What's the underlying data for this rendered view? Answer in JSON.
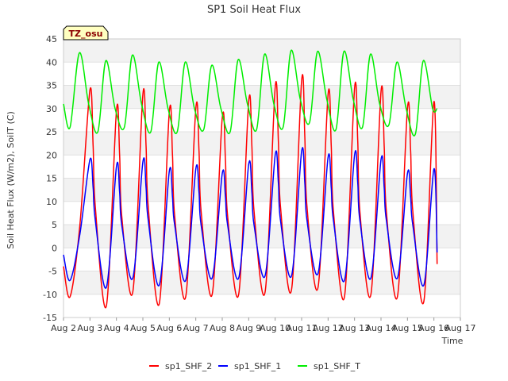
{
  "chart_data": {
    "type": "line",
    "title": "SP1 Soil Heat Flux",
    "xlabel": "Time",
    "ylabel": "Soil Heat Flux (W/m2), SoilT (C)",
    "badge": "TZ_osu",
    "ylim": [
      -15,
      45
    ],
    "xlim": [
      2,
      17
    ],
    "yticks": [
      "-15",
      "-10",
      "-5",
      "0",
      "5",
      "10",
      "15",
      "20",
      "25",
      "30",
      "35",
      "40",
      "45"
    ],
    "xticks": [
      "Aug 2",
      "Aug 3",
      "Aug 4",
      "Aug 5",
      "Aug 6",
      "Aug 7",
      "Aug 8",
      "Aug 9",
      "Aug 10",
      "Aug 11",
      "Aug 12",
      "Aug 13",
      "Aug 14",
      "Aug 15",
      "Aug 16",
      "Aug 17"
    ],
    "grid": true,
    "legend_position": "bottom",
    "series": [
      {
        "name": "sp1_SHF_2",
        "color": "#ff0000",
        "x": [
          2.0,
          2.25,
          2.62,
          3.0,
          3.12,
          3.2,
          3.62,
          4.0,
          4.12,
          4.2,
          4.62,
          5.0,
          5.12,
          5.2,
          5.62,
          6.0,
          6.12,
          6.2,
          6.62,
          7.0,
          7.12,
          7.2,
          7.62,
          8.0,
          8.12,
          8.2,
          8.62,
          9.0,
          9.12,
          9.2,
          9.62,
          10.0,
          10.12,
          10.2,
          10.62,
          11.0,
          11.12,
          11.2,
          11.62,
          12.0,
          12.12,
          12.2,
          12.62,
          13.0,
          13.12,
          13.2,
          13.62,
          14.0,
          14.12,
          14.2,
          14.62,
          15.0,
          15.12,
          15.2,
          15.62,
          16.0,
          16.12
        ],
        "y": [
          -4.0,
          -10.5,
          5,
          34,
          22,
          9,
          -12.5,
          29.5,
          20,
          7,
          -9.5,
          33,
          22,
          9,
          -12,
          29.3,
          20,
          7,
          -10.5,
          30,
          21,
          8,
          -10,
          28,
          19,
          7,
          -10,
          31.5,
          22,
          8,
          -9.5,
          34.5,
          23,
          9,
          -9,
          36,
          24,
          9,
          -8.5,
          33,
          22,
          8,
          -10.5,
          34.3,
          23,
          8,
          -10,
          33.6,
          22,
          8,
          -10.5,
          30,
          21,
          8,
          -11.5,
          31.5,
          -3.5
        ]
      },
      {
        "name": "sp1_SHF_1",
        "color": "#0000ff",
        "x": [
          2.0,
          2.25,
          2.62,
          3.0,
          3.12,
          3.2,
          3.62,
          4.0,
          4.12,
          4.2,
          4.62,
          5.0,
          5.12,
          5.2,
          5.62,
          6.0,
          6.12,
          6.2,
          6.62,
          7.0,
          7.12,
          7.2,
          7.62,
          8.0,
          8.12,
          8.2,
          8.62,
          9.0,
          9.12,
          9.2,
          9.62,
          10.0,
          10.12,
          10.2,
          10.62,
          11.0,
          11.12,
          11.2,
          11.62,
          12.0,
          12.12,
          12.2,
          12.62,
          13.0,
          13.12,
          13.2,
          13.62,
          14.0,
          14.12,
          14.2,
          14.62,
          15.0,
          15.12,
          15.2,
          15.62,
          16.0,
          16.12
        ],
        "y": [
          -1.5,
          -7,
          3,
          19,
          13,
          6,
          -8.5,
          17.5,
          12,
          5,
          -6.5,
          18.5,
          13,
          6,
          -8,
          16.5,
          11,
          5,
          -7,
          17,
          12,
          5,
          -6.5,
          16,
          11,
          5,
          -6.5,
          18,
          12,
          5,
          -6,
          20,
          14,
          6,
          -6,
          20.8,
          14,
          6,
          -5.5,
          19.5,
          13,
          6,
          -7,
          20,
          14,
          6,
          -6.5,
          19,
          13,
          6,
          -6.5,
          16,
          11,
          5,
          -8,
          17,
          -1
        ]
      },
      {
        "name": "sp1_SHF_T",
        "color": "#00ee00",
        "x": [
          2.0,
          2.25,
          2.6,
          2.95,
          3.3,
          3.6,
          3.95,
          4.3,
          4.6,
          4.95,
          5.3,
          5.6,
          5.95,
          6.3,
          6.6,
          6.95,
          7.3,
          7.6,
          7.95,
          8.3,
          8.6,
          8.95,
          9.3,
          9.6,
          9.95,
          10.3,
          10.6,
          10.95,
          11.3,
          11.6,
          11.95,
          12.3,
          12.6,
          12.95,
          13.3,
          13.6,
          13.95,
          14.3,
          14.6,
          14.95,
          15.3,
          15.6,
          15.95,
          16.12
        ],
        "y": [
          31,
          26,
          42,
          31,
          25,
          40.3,
          30,
          26,
          41.5,
          31,
          25,
          40,
          30,
          25,
          40,
          30,
          25.5,
          39.3,
          30,
          25,
          40.5,
          31,
          25.5,
          41.7,
          31,
          26,
          42.5,
          32,
          27,
          42.3,
          32,
          25.5,
          42.3,
          32,
          26,
          41.7,
          31,
          26.5,
          40,
          30,
          24.5,
          40.3,
          30,
          30
        ]
      }
    ]
  }
}
